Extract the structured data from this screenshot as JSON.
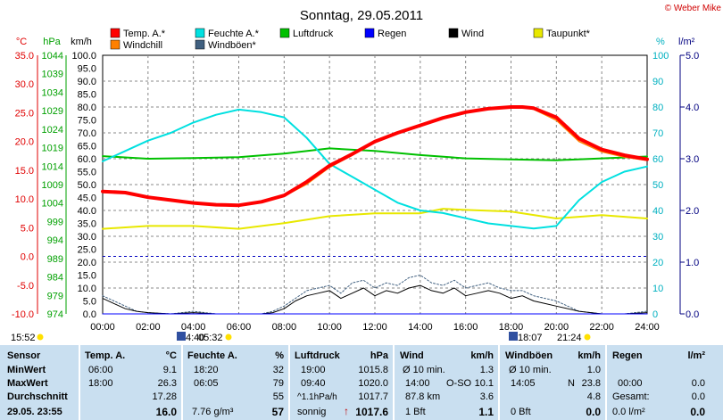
{
  "credit": "© Weber Mike",
  "chart_data": {
    "type": "line",
    "title": "Sonntag, 29.05.2011",
    "x_ticks": [
      "00:00",
      "02:00",
      "04:00",
      "06:00",
      "08:00",
      "10:00",
      "12:00",
      "14:00",
      "16:00",
      "18:00",
      "20:00",
      "22:00",
      "24:00"
    ],
    "axes": {
      "temp": {
        "unit": "°C",
        "ticks": [
          "35.0",
          "30.0",
          "25.0",
          "20.0",
          "15.0",
          "10.0",
          "5.0",
          "0.0",
          "-5.0",
          "-10.0"
        ],
        "range": [
          -10,
          35
        ],
        "color": "#e00000"
      },
      "pressure": {
        "unit": "hPa",
        "ticks": [
          "1044",
          "1039",
          "1034",
          "1029",
          "1024",
          "1019",
          "1014",
          "1009",
          "1004",
          "999",
          "994",
          "989",
          "984",
          "979",
          "974"
        ],
        "range": [
          974,
          1044
        ],
        "color": "#00a000"
      },
      "wind": {
        "unit": "km/h",
        "ticks": [
          "100.0",
          "95.0",
          "90.0",
          "85.0",
          "80.0",
          "75.0",
          "70.0",
          "65.0",
          "60.0",
          "55.0",
          "50.0",
          "45.0",
          "40.0",
          "35.0",
          "30.0",
          "25.0",
          "20.0",
          "15.0",
          "10.0",
          "5.0",
          "0.0"
        ],
        "range": [
          0,
          100
        ],
        "color": "#000000"
      },
      "humidity": {
        "unit": "%",
        "ticks": [
          "100",
          "90",
          "80",
          "70",
          "60",
          "50",
          "40",
          "30",
          "20",
          "10",
          "0"
        ],
        "range": [
          0,
          100
        ],
        "color": "#00b0c0"
      },
      "rain": {
        "unit": "l/m²",
        "ticks": [
          "5.0",
          "4.0",
          "3.0",
          "2.0",
          "1.0",
          "0.0"
        ],
        "range": [
          0,
          5
        ],
        "color": "#000080"
      }
    },
    "legend": [
      {
        "name": "Temp. A.*",
        "color": "#ff0000"
      },
      {
        "name": "Feuchte A.*",
        "color": "#00e0e0"
      },
      {
        "name": "Luftdruck",
        "color": "#00c000"
      },
      {
        "name": "Regen",
        "color": "#0000ff"
      },
      {
        "name": "Wind",
        "color": "#000000"
      },
      {
        "name": "Taupunkt*",
        "color": "#e8e800"
      },
      {
        "name": "Windchill",
        "color": "#ff8000"
      },
      {
        "name": "Windböen*",
        "color": "#406080"
      }
    ],
    "series": [
      {
        "name": "Temp. A.*",
        "axis": "temp",
        "color": "#ff0000",
        "width": 4,
        "x": [
          0,
          1,
          2,
          3,
          4,
          5,
          6,
          7,
          8,
          9,
          10,
          11,
          12,
          13,
          14,
          15,
          16,
          17,
          18,
          18.5,
          19,
          20,
          21,
          22,
          23,
          24
        ],
        "y": [
          11.3,
          11.1,
          10.3,
          9.8,
          9.3,
          9.0,
          8.9,
          9.5,
          10.6,
          13,
          15.8,
          17.8,
          20.0,
          21.5,
          22.8,
          24.1,
          25.1,
          25.7,
          26.0,
          26.0,
          25.8,
          24.2,
          20.5,
          18.6,
          17.6,
          16.9
        ]
      },
      {
        "name": "Windchill",
        "axis": "temp",
        "color": "#ff8000",
        "width": 1.5,
        "x": [
          0,
          1,
          2,
          3,
          4,
          5,
          6,
          7,
          8,
          9,
          10,
          11,
          12,
          13,
          14,
          15,
          16,
          17,
          18,
          18.5,
          19,
          20,
          21,
          22,
          23,
          24
        ],
        "y": [
          11.3,
          11.1,
          10.3,
          9.8,
          9.3,
          9.0,
          8.9,
          9.5,
          10.5,
          12.6,
          15.5,
          17.6,
          20.0,
          21.5,
          22.8,
          24.1,
          25.1,
          25.7,
          26.0,
          26.0,
          25.6,
          23.7,
          20.0,
          18.2,
          17.3,
          16.7
        ]
      },
      {
        "name": "Feuchte A.*",
        "axis": "humidity",
        "color": "#00e0e0",
        "width": 2,
        "x": [
          0,
          1,
          2,
          3,
          4,
          5,
          6,
          7,
          8,
          9,
          10,
          11,
          12,
          13,
          14,
          15,
          16,
          17,
          18,
          19,
          20,
          21,
          22,
          23,
          24
        ],
        "y": [
          59,
          63,
          67,
          70,
          74,
          77,
          79,
          78,
          76,
          68,
          58,
          53,
          48,
          43,
          40,
          39,
          37,
          35,
          34,
          33,
          34,
          44,
          51,
          55,
          57
        ]
      },
      {
        "name": "Luftdruck",
        "axis": "pressure",
        "color": "#00c000",
        "width": 2,
        "x": [
          0,
          2,
          4,
          6,
          8,
          10,
          12,
          14,
          16,
          18,
          20,
          22,
          24
        ],
        "y": [
          1016.7,
          1016.0,
          1016.2,
          1016.4,
          1017.4,
          1018.8,
          1018.1,
          1017.0,
          1016.1,
          1015.8,
          1015.6,
          1016.1,
          1016.6
        ]
      },
      {
        "name": "Taupunkt*",
        "axis": "temp",
        "color": "#e8e800",
        "width": 2,
        "x": [
          0,
          2,
          4,
          6,
          8,
          10,
          12,
          14,
          15,
          16,
          18,
          20,
          22,
          24
        ],
        "y": [
          4.8,
          5.3,
          5.3,
          4.8,
          5.8,
          7.0,
          7.5,
          7.5,
          8.3,
          8.1,
          7.8,
          6.6,
          7.2,
          6.6
        ]
      },
      {
        "name": "Wind",
        "axis": "wind",
        "color": "#000000",
        "width": 1,
        "x": [
          0,
          0.5,
          1,
          1.5,
          2,
          3,
          4,
          5,
          6,
          7,
          7.5,
          8,
          8.5,
          9,
          9.5,
          10,
          10.5,
          11,
          11.5,
          12,
          12.5,
          13,
          13.5,
          14,
          14.5,
          15,
          15.5,
          16,
          16.5,
          17,
          17.5,
          18,
          18.5,
          19,
          19.5,
          20,
          20.5,
          21,
          22,
          23,
          24
        ],
        "y": [
          6,
          4,
          2,
          1,
          0.5,
          0,
          0.5,
          0,
          0,
          0,
          0.5,
          2,
          5,
          7,
          8,
          9,
          6,
          8,
          10,
          7,
          9,
          8,
          10,
          11,
          9,
          8,
          10,
          7,
          8,
          9,
          8,
          6,
          7,
          5,
          4,
          3,
          2,
          1,
          0,
          0,
          0.5
        ]
      },
      {
        "name": "Windböen*",
        "axis": "wind",
        "color": "#406080",
        "width": 1,
        "dash": true,
        "x": [
          0,
          0.5,
          1,
          1.5,
          2,
          3,
          4,
          5,
          6,
          7,
          7.5,
          8,
          8.5,
          9,
          9.5,
          10,
          10.5,
          11,
          11.5,
          12,
          12.5,
          13,
          13.5,
          14,
          14.5,
          15,
          15.5,
          16,
          16.5,
          17,
          17.5,
          18,
          18.5,
          19,
          19.5,
          20,
          20.5,
          21,
          22,
          23,
          24
        ],
        "y": [
          7,
          5,
          3,
          1,
          0.5,
          0,
          1,
          0,
          0,
          0,
          1,
          3,
          6,
          9,
          10,
          11,
          8,
          12,
          13,
          10,
          12,
          11,
          14,
          15,
          12,
          11,
          13,
          10,
          11,
          12,
          10,
          9,
          9,
          7,
          6,
          5,
          3,
          1,
          0,
          0,
          1
        ]
      },
      {
        "name": "Regen",
        "axis": "rain",
        "color": "#0000ff",
        "width": 1,
        "x": [
          0,
          24
        ],
        "y": [
          0,
          0
        ]
      }
    ]
  },
  "sun": {
    "left": "15:52",
    "moonrise": "4:40",
    "sunrise": "05:32",
    "sunset": "18:07",
    "moonset": "21:24"
  },
  "table": {
    "rows": {
      "sensor": "Sensor",
      "min": "MinWert",
      "max": "MaxWert",
      "avg": "Durchschnitt",
      "now": "29.05. 23:55"
    },
    "temp": {
      "title": "Temp. A.",
      "unit": "°C",
      "min_t": "06:00",
      "min_v": "9.1",
      "max_t": "18:00",
      "max_v": "26.3",
      "avg": "17.28",
      "now": "16.0"
    },
    "hum": {
      "title": "Feuchte A.",
      "unit": "%",
      "min_t": "18:20",
      "min_v": "32",
      "max_t": "06:05",
      "max_v": "79",
      "avg": "55",
      "now_extra": "7.76 g/m³",
      "now": "57"
    },
    "press": {
      "title": "Luftdruck",
      "unit": "hPa",
      "min_t": "19:00",
      "min_v": "1015.8",
      "max_t": "09:40",
      "max_v": "1020.0",
      "avg_t": "^1.1hPa/h",
      "avg": "1017.7",
      "now_t": "sonnig",
      "now_arrow": "↑",
      "now": "1017.6"
    },
    "wind": {
      "title": "Wind",
      "unit": "km/h",
      "min_t": "Ø 10 min.",
      "min_v": "1.3",
      "max_t": "14:00",
      "max_dir": "O-SO",
      "max_v": "10.1",
      "avg_t": "87.8 km",
      "avg": "3.6",
      "now_t": "1 Bft",
      "now": "1.1"
    },
    "gust": {
      "title": "Windböen",
      "unit": "km/h",
      "min_t": "Ø 10 min.",
      "min_v": "1.0",
      "max_t": "14:05",
      "max_dir": "N",
      "max_v": "23.8",
      "avg": "4.8",
      "now_t": "0 Bft",
      "now": "0.0"
    },
    "rain": {
      "title": "Regen",
      "unit": "l/m²",
      "max_t": "00:00",
      "max_v": "0.0",
      "avg_t": "Gesamt:",
      "avg": "0.0",
      "now_t": "0.0 l/m²",
      "now": "0.0"
    }
  }
}
